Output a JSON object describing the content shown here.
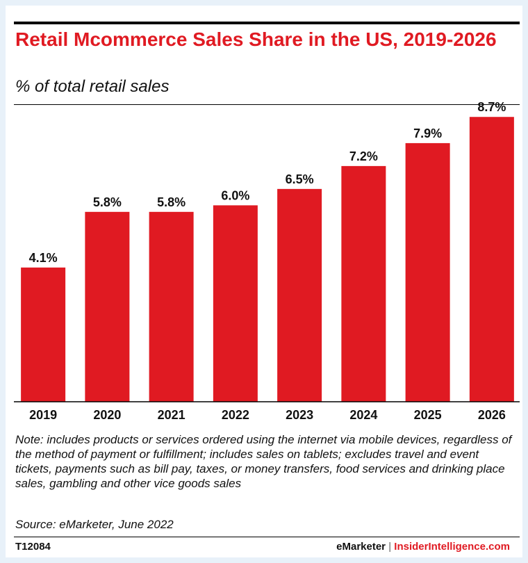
{
  "chart_data": {
    "type": "bar",
    "title": "Retail Mcommerce Sales Share in the US, 2019-2026",
    "subtitle": "% of total retail sales",
    "categories": [
      "2019",
      "2020",
      "2021",
      "2022",
      "2023",
      "2024",
      "2025",
      "2026"
    ],
    "values": [
      4.1,
      5.8,
      5.8,
      6.0,
      6.5,
      7.2,
      7.9,
      8.7
    ],
    "value_labels": [
      "4.1%",
      "5.8%",
      "5.8%",
      "6.0%",
      "6.5%",
      "7.2%",
      "7.9%",
      "8.7%"
    ],
    "xlabel": "",
    "ylabel": "",
    "ylim": [
      0,
      9
    ],
    "grid": false,
    "bar_color": "#e01a22"
  },
  "note": "Note: includes products or services ordered using the internet via mobile devices, regardless of the method of payment or fulfillment; includes sales on tablets; excludes travel and event tickets, payments such as bill pay, taxes, or money transfers, food services and drinking place sales, gambling and other vice goods sales",
  "source": "Source: eMarketer, June 2022",
  "footer": {
    "code": "T12084",
    "brand_left": "eMarketer",
    "separator": "|",
    "brand_right": "InsiderIntelligence.com"
  },
  "colors": {
    "accent": "#e01a22",
    "background": "#e8f1f9"
  }
}
